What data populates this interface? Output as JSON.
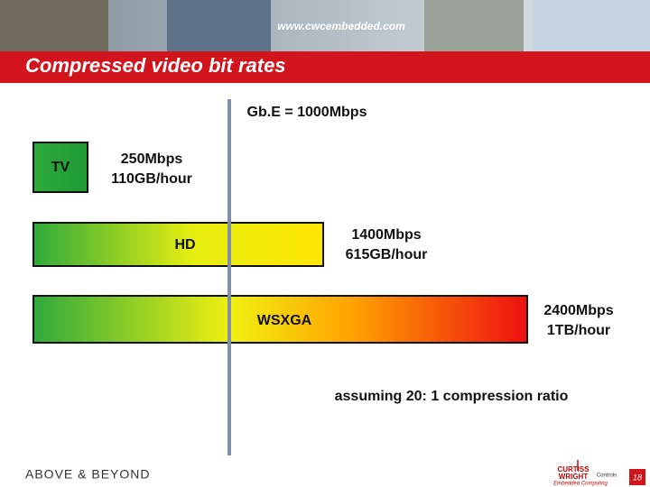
{
  "header": {
    "url": "www.cwcembedded.com",
    "title": "Compressed video bit rates"
  },
  "reference": "Gb.E = 1000Mbps",
  "items": [
    {
      "label": "TV",
      "rate": "250Mbps",
      "volume": "110GB/hour"
    },
    {
      "label": "HD",
      "rate": "1400Mbps",
      "volume": "615GB/hour"
    },
    {
      "label": "WSXGA",
      "rate": "2400Mbps",
      "volume": "1TB/hour"
    }
  ],
  "footnote": "assuming 20: 1 compression ratio",
  "footer": {
    "tagline": "ABOVE & BEYOND",
    "logo": [
      "CURTISS",
      "WRIGHT",
      "Controls",
      "Embedded Computing"
    ],
    "page_number": "18"
  }
}
